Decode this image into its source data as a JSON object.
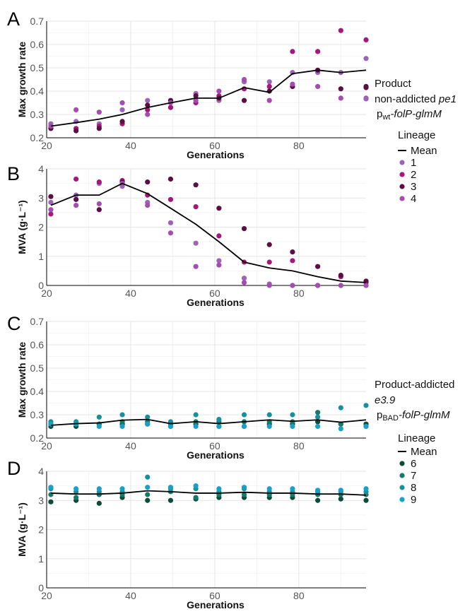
{
  "colors": {
    "lineage_1": "#9c64b4",
    "lineage_2": "#a3187a",
    "lineage_3": "#5a0e42",
    "lineage_4": "#a44cb0",
    "lineage_6": "#0d4b3b",
    "lineage_7": "#167a6a",
    "lineage_8": "#1a8f9c",
    "lineage_9": "#1aa0c8",
    "mean": "#000000"
  },
  "legend_top": {
    "product_title": "Product",
    "strain_prefix": "non-addicted ",
    "strain_italic": "pe1",
    "promoter_p": "p",
    "promoter_sub": "wt",
    "promoter_gene": "-folP-glmM",
    "lineage_title": "Lineage",
    "items": [
      {
        "label": "Mean",
        "kind": "line",
        "color_key": "mean"
      },
      {
        "label": "1",
        "kind": "dot",
        "color_key": "lineage_1"
      },
      {
        "label": "2",
        "kind": "dot",
        "color_key": "lineage_2"
      },
      {
        "label": "3",
        "kind": "dot",
        "color_key": "lineage_3"
      },
      {
        "label": "4",
        "kind": "dot",
        "color_key": "lineage_4"
      }
    ]
  },
  "legend_bottom": {
    "product_title": "Product-addicted",
    "strain_italic": "e3.9",
    "promoter_p": "p",
    "promoter_sub": "BAD",
    "promoter_gene": "-folP-glmM",
    "lineage_title": "Lineage",
    "items": [
      {
        "label": "Mean",
        "kind": "line",
        "color_key": "mean"
      },
      {
        "label": "6",
        "kind": "dot",
        "color_key": "lineage_6"
      },
      {
        "label": "7",
        "kind": "dot",
        "color_key": "lineage_7"
      },
      {
        "label": "8",
        "kind": "dot",
        "color_key": "lineage_8"
      },
      {
        "label": "9",
        "kind": "dot",
        "color_key": "lineage_9"
      }
    ]
  },
  "chart_data": [
    {
      "panel": "A",
      "type": "scatter",
      "xlabel": "Generations",
      "ylabel": "Max growth rate",
      "xlim": [
        20,
        96
      ],
      "ylim": [
        0.2,
        0.7
      ],
      "xticks": [
        20,
        40,
        60,
        80
      ],
      "yticks": [
        0.2,
        0.3,
        0.4,
        0.5,
        0.6,
        0.7
      ],
      "grid": true,
      "x": [
        21,
        27,
        32.5,
        38,
        44,
        49.5,
        55.5,
        61,
        67,
        73,
        78.5,
        84.5,
        90,
        96
      ],
      "series": [
        {
          "name": "1",
          "color_key": "lineage_1",
          "values": [
            0.26,
            0.27,
            0.26,
            0.32,
            0.36,
            0.33,
            0.39,
            0.36,
            0.44,
            0.44,
            0.48,
            0.48,
            0.48,
            0.54
          ]
        },
        {
          "name": "2",
          "color_key": "lineage_2",
          "values": [
            0.24,
            0.24,
            0.25,
            0.26,
            0.32,
            0.33,
            0.35,
            0.38,
            0.41,
            0.42,
            0.57,
            0.57,
            0.66,
            0.62
          ]
        },
        {
          "name": "3",
          "color_key": "lineage_3",
          "values": [
            0.24,
            0.23,
            0.24,
            0.27,
            0.34,
            0.36,
            0.38,
            0.37,
            0.36,
            0.4,
            0.42,
            0.49,
            0.41,
            0.42
          ]
        },
        {
          "name": "4",
          "color_key": "lineage_4",
          "values": [
            0.25,
            0.32,
            0.31,
            0.35,
            0.3,
            0.35,
            0.36,
            0.4,
            0.45,
            0.36,
            0.43,
            0.42,
            0.37,
            0.37
          ]
        }
      ],
      "mean": [
        0.25,
        0.265,
        0.28,
        0.3,
        0.33,
        0.35,
        0.37,
        0.37,
        0.415,
        0.395,
        0.475,
        0.49,
        0.48,
        0.49
      ]
    },
    {
      "panel": "B",
      "type": "scatter",
      "xlabel": "Generations",
      "ylabel": "MVA (g·L⁻¹)",
      "xlim": [
        20,
        96
      ],
      "ylim": [
        0,
        4
      ],
      "xticks": [
        20,
        40,
        60,
        80
      ],
      "yticks": [
        0,
        1,
        2,
        3,
        4
      ],
      "grid": true,
      "x": [
        21,
        27,
        32.5,
        38,
        44,
        49.5,
        55.5,
        61,
        67,
        73,
        78.5,
        84.5,
        90,
        96
      ],
      "series": [
        {
          "name": "1",
          "color_key": "lineage_1",
          "values": [
            2.85,
            3.1,
            3.5,
            3.4,
            2.85,
            2.15,
            1.45,
            0.85,
            0.25,
            0.05,
            0.0,
            0.0,
            0.0,
            0.0
          ]
        },
        {
          "name": "2",
          "color_key": "lineage_2",
          "values": [
            2.45,
            3.65,
            3.55,
            3.6,
            3.1,
            2.95,
            2.7,
            1.7,
            0.8,
            0.8,
            0.85,
            0.0,
            0.3,
            0.1
          ]
        },
        {
          "name": "3",
          "color_key": "lineage_3",
          "values": [
            3.05,
            2.95,
            2.6,
            3.55,
            3.55,
            3.65,
            3.45,
            2.65,
            1.95,
            1.4,
            1.15,
            0.65,
            0.35,
            0.15
          ]
        },
        {
          "name": "4",
          "color_key": "lineage_4",
          "values": [
            2.6,
            2.75,
            2.8,
            3.5,
            2.75,
            1.8,
            0.65,
            0.7,
            0.1,
            0.0,
            0.0,
            0.0,
            0.0,
            0.0
          ]
        }
      ],
      "mean": [
        2.75,
        3.1,
        3.1,
        3.5,
        3.15,
        2.65,
        2.1,
        1.5,
        0.8,
        0.6,
        0.5,
        0.3,
        0.15,
        0.1
      ]
    },
    {
      "panel": "C",
      "type": "scatter",
      "xlabel": "Generations",
      "ylabel": "Max growth rate",
      "xlim": [
        20,
        96
      ],
      "ylim": [
        0.2,
        0.7
      ],
      "xticks": [
        20,
        40,
        60,
        80
      ],
      "yticks": [
        0.2,
        0.3,
        0.4,
        0.5,
        0.6,
        0.7
      ],
      "grid": true,
      "x": [
        21,
        27,
        32.5,
        38,
        44,
        49.5,
        55.5,
        61,
        67,
        73,
        78.5,
        84.5,
        90,
        96
      ],
      "series": [
        {
          "name": "6",
          "color_key": "lineage_6",
          "values": [
            0.25,
            0.25,
            0.26,
            0.26,
            0.26,
            0.25,
            0.26,
            0.25,
            0.25,
            0.26,
            0.26,
            0.27,
            0.26,
            0.26
          ]
        },
        {
          "name": "7",
          "color_key": "lineage_7",
          "values": [
            0.26,
            0.26,
            0.26,
            0.27,
            0.27,
            0.26,
            0.27,
            0.27,
            0.27,
            0.27,
            0.27,
            0.31,
            0.26,
            0.25
          ]
        },
        {
          "name": "8",
          "color_key": "lineage_8",
          "values": [
            0.27,
            0.27,
            0.29,
            0.3,
            0.29,
            0.27,
            0.3,
            0.28,
            0.3,
            0.3,
            0.3,
            0.29,
            0.33,
            0.34
          ]
        },
        {
          "name": "9",
          "color_key": "lineage_9",
          "values": [
            0.26,
            0.26,
            0.25,
            0.25,
            0.26,
            0.25,
            0.25,
            0.25,
            0.25,
            0.25,
            0.25,
            0.25,
            0.24,
            0.25
          ]
        }
      ],
      "mean": [
        0.255,
        0.262,
        0.265,
        0.277,
        0.28,
        0.262,
        0.27,
        0.262,
        0.27,
        0.278,
        0.272,
        0.278,
        0.268,
        0.278
      ]
    },
    {
      "panel": "D",
      "type": "scatter",
      "xlabel": "Generations",
      "ylabel": "MVA (g·L⁻¹)",
      "xlim": [
        20,
        96
      ],
      "ylim": [
        0,
        4
      ],
      "xticks": [
        20,
        40,
        60,
        80
      ],
      "yticks": [
        0,
        1,
        2,
        3,
        4
      ],
      "grid": true,
      "x": [
        21,
        27,
        32.5,
        38,
        44,
        49.5,
        55.5,
        61,
        67,
        73,
        78.5,
        84.5,
        90,
        96
      ],
      "series": [
        {
          "name": "6",
          "color_key": "lineage_6",
          "values": [
            2.95,
            3.0,
            2.9,
            3.1,
            3.0,
            3.0,
            3.05,
            3.1,
            3.1,
            3.1,
            3.1,
            3.0,
            3.05,
            3.0
          ]
        },
        {
          "name": "7",
          "color_key": "lineage_7",
          "values": [
            3.2,
            3.1,
            3.2,
            3.2,
            3.2,
            3.3,
            3.1,
            3.2,
            3.2,
            3.2,
            3.2,
            3.2,
            3.2,
            3.2
          ]
        },
        {
          "name": "8",
          "color_key": "lineage_8",
          "values": [
            3.4,
            3.3,
            3.3,
            3.3,
            3.8,
            3.4,
            3.4,
            3.3,
            3.4,
            3.3,
            3.3,
            3.3,
            3.3,
            3.3
          ]
        },
        {
          "name": "9",
          "color_key": "lineage_9",
          "values": [
            3.45,
            3.4,
            3.4,
            3.4,
            3.45,
            3.45,
            3.5,
            3.4,
            3.45,
            3.4,
            3.4,
            3.35,
            3.35,
            3.4
          ]
        }
      ],
      "mean": [
        3.25,
        3.22,
        3.22,
        3.25,
        3.33,
        3.3,
        3.25,
        3.25,
        3.28,
        3.25,
        3.25,
        3.22,
        3.22,
        3.18
      ]
    }
  ]
}
